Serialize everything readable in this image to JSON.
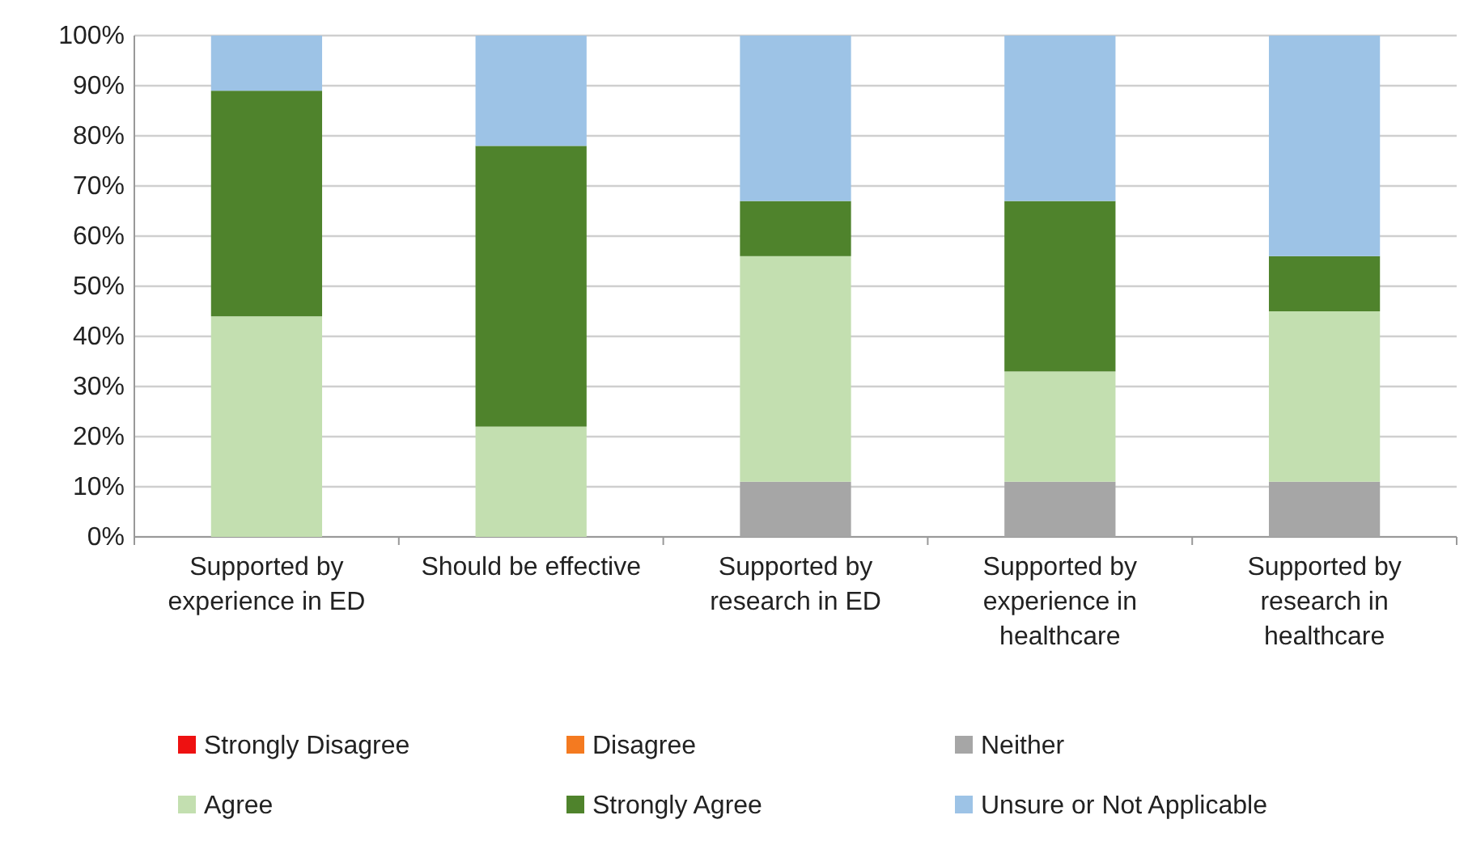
{
  "chart_data": {
    "type": "bar",
    "stacked": true,
    "categories": [
      "Supported by experience in ED",
      "Should be effective",
      "Supported by research in ED",
      "Supported by experience in healthcare",
      "Supported by research in healthcare"
    ],
    "series": [
      {
        "name": "Strongly Disagree",
        "color": "#ee1111",
        "values": [
          0,
          0,
          0,
          0,
          0
        ]
      },
      {
        "name": "Disagree",
        "color": "#f47a20",
        "values": [
          0,
          0,
          0,
          0,
          0
        ]
      },
      {
        "name": "Neither",
        "color": "#a6a6a6",
        "values": [
          0,
          0,
          11,
          11,
          11
        ]
      },
      {
        "name": "Agree",
        "color": "#c3dfb0",
        "values": [
          44,
          22,
          45,
          22,
          34
        ]
      },
      {
        "name": "Strongly Agree",
        "color": "#4f832c",
        "values": [
          45,
          56,
          11,
          34,
          11
        ]
      },
      {
        "name": "Unsure or Not Applicable",
        "color": "#9dc3e6",
        "values": [
          11,
          22,
          33,
          33,
          44
        ]
      }
    ],
    "ylim": [
      0,
      100
    ],
    "yticks": [
      {
        "value": 0,
        "label": "0%"
      },
      {
        "value": 10,
        "label": "10%"
      },
      {
        "value": 20,
        "label": "20%"
      },
      {
        "value": 30,
        "label": "30%"
      },
      {
        "value": 40,
        "label": "40%"
      },
      {
        "value": 50,
        "label": "50%"
      },
      {
        "value": 60,
        "label": "60%"
      },
      {
        "value": 70,
        "label": "70%"
      },
      {
        "value": 80,
        "label": "80%"
      },
      {
        "value": 90,
        "label": "90%"
      },
      {
        "value": 100,
        "label": "100%"
      }
    ],
    "grid": "y",
    "legend": "bottom"
  }
}
